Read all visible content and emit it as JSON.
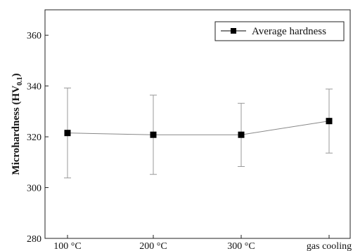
{
  "chart_data": {
    "type": "line",
    "title": "",
    "xlabel": "",
    "ylabel": "Microhardness (HV",
    "ylabel_sub": "0.1",
    "ylabel_close": ")",
    "categories": [
      "100 °C",
      "200 °C",
      "300 °C",
      "gas cooling"
    ],
    "series": [
      {
        "name": "Average hardness",
        "values": [
          321.5,
          320.8,
          320.8,
          326.2
        ],
        "error_low": [
          303.8,
          305.2,
          308.3,
          313.6
        ],
        "error_high": [
          339.2,
          336.4,
          333.2,
          338.8
        ],
        "color": "#000000",
        "marker": "square"
      }
    ],
    "ylim": [
      280,
      370
    ],
    "yticks": [
      280,
      300,
      320,
      340,
      360
    ],
    "grid": false,
    "legend_position": "top-right"
  }
}
